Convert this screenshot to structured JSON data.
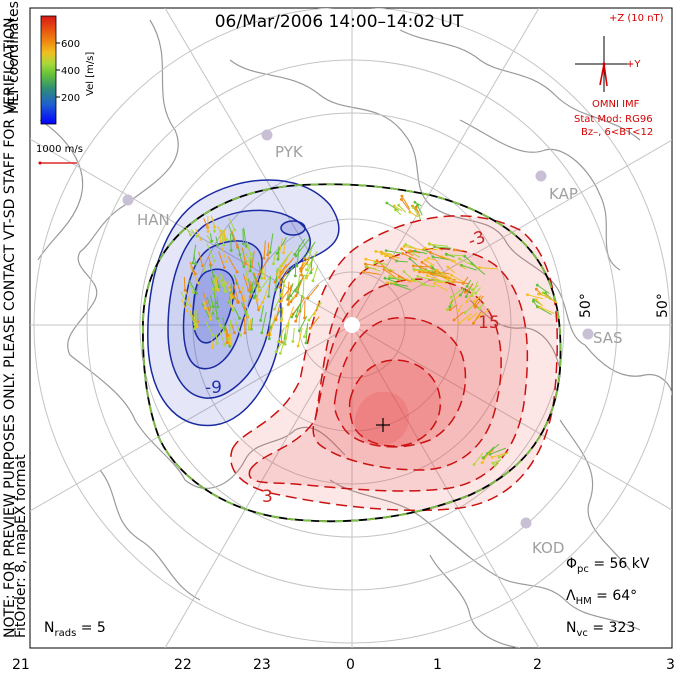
{
  "title": "06/Mar/2006 14:00–14:02 UT",
  "notice": {
    "line1": "NOTE: FOR PREVIEW PURPOSES ONLY. PLEASE CONTACT VT-SD STAFF FOR VERIFICATION.",
    "line2": "FitOrder: 8, mapEX format"
  },
  "coordinates": "MLT coordinates",
  "colorbar": {
    "label": "Vel [m/s]",
    "ticks": [
      "600",
      "400",
      "200"
    ],
    "colors": [
      "#0000ff",
      "#1f5fd0",
      "#2e8b7a",
      "#5fbf3a",
      "#a8d83a",
      "#f0c020",
      "#f08a10",
      "#e85010",
      "#d81818"
    ]
  },
  "scale_vector": {
    "label": "1000 m/s",
    "color": "#d40000"
  },
  "imf": {
    "z_label": "+Z (10 nT)",
    "y_label": "+Y",
    "source": "OMNI IMF",
    "model": "Stat Mod: RG96",
    "condition": "Bz–, 6<BT<12"
  },
  "stations": [
    {
      "code": "PYK"
    },
    {
      "code": "HAN"
    },
    {
      "code": "KAP"
    },
    {
      "code": "SAS"
    },
    {
      "code": "KOD"
    }
  ],
  "latitude_labels": [
    "50°",
    "50°"
  ],
  "contour_labels": {
    "negative": "-9",
    "positive_top": "15",
    "positive_mid": "-3",
    "positive_bottom": "3"
  },
  "stats": {
    "phi_pc": {
      "symbol": "Φ",
      "sub": "pc",
      "value": " = 56 kV"
    },
    "lambda_hm": {
      "symbol": "Λ",
      "sub": "HM",
      "value": " = 64°"
    },
    "n_vc": {
      "symbol": "N",
      "sub": "vc",
      "value": " = 323"
    },
    "n_rads": {
      "symbol": "N",
      "sub": "rads",
      "value": " = 5"
    }
  },
  "mlt_axis": [
    "21",
    "22",
    "23",
    "0",
    "1",
    "2",
    "3"
  ],
  "colors": {
    "negative_fill": "#3344cc",
    "negative_line": "#1a2aa0",
    "positive_fill": "#e84040",
    "positive_line": "#cc1111",
    "boundary": "#7bc043",
    "grid": "#c4c4c4",
    "coast": "#9a9a9a"
  }
}
